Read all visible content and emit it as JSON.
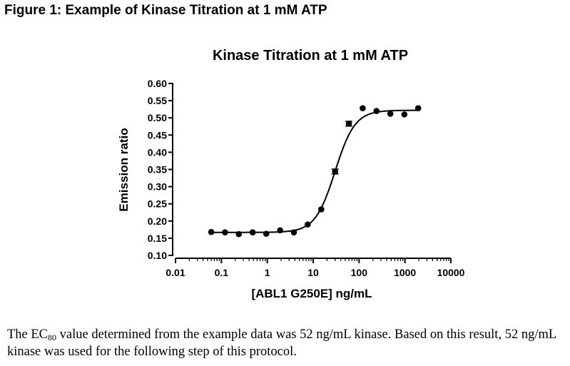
{
  "figure_caption": "Figure 1: Example of Kinase Titration at 1 mM ATP",
  "body_text": {
    "part1": "The EC",
    "subscript": "80",
    "part2": " value determined from the example data was 52 ng/mL kinase.  Based on this result, 52 ng/mL kinase was used for the following step of this protocol."
  },
  "chart_data": {
    "type": "scatter",
    "title": "Kinase Titration at 1 mM ATP",
    "xlabel": "[ABL1 G250E] ng/mL",
    "ylabel": "Emission ratio",
    "x_scale": "log",
    "xlim": [
      0.01,
      10000
    ],
    "ylim": [
      0.1,
      0.6
    ],
    "x_ticks": [
      {
        "value": 0.01,
        "label": "0.01"
      },
      {
        "value": 0.1,
        "label": "0.1"
      },
      {
        "value": 1,
        "label": "1"
      },
      {
        "value": 10,
        "label": "10"
      },
      {
        "value": 100,
        "label": "100"
      },
      {
        "value": 1000,
        "label": "1000"
      },
      {
        "value": 10000,
        "label": "10000"
      }
    ],
    "y_ticks": [
      {
        "value": 0.1,
        "label": "0.10"
      },
      {
        "value": 0.15,
        "label": "0.15"
      },
      {
        "value": 0.2,
        "label": "0.20"
      },
      {
        "value": 0.25,
        "label": "0.25"
      },
      {
        "value": 0.3,
        "label": "0.30"
      },
      {
        "value": 0.35,
        "label": "0.35"
      },
      {
        "value": 0.4,
        "label": "0.40"
      },
      {
        "value": 0.45,
        "label": "0.45"
      },
      {
        "value": 0.5,
        "label": "0.50"
      },
      {
        "value": 0.55,
        "label": "0.55"
      },
      {
        "value": 0.6,
        "label": "0.60"
      }
    ],
    "grid": false,
    "points": [
      {
        "x": 0.06,
        "y": 0.168
      },
      {
        "x": 0.12,
        "y": 0.167
      },
      {
        "x": 0.24,
        "y": 0.162
      },
      {
        "x": 0.48,
        "y": 0.167
      },
      {
        "x": 0.95,
        "y": 0.163
      },
      {
        "x": 1.9,
        "y": 0.173
      },
      {
        "x": 3.8,
        "y": 0.167
      },
      {
        "x": 7.6,
        "y": 0.19
      },
      {
        "x": 15,
        "y": 0.234
      },
      {
        "x": 30,
        "y": 0.344,
        "err": 0.007
      },
      {
        "x": 60,
        "y": 0.483,
        "err": 0.007
      },
      {
        "x": 120,
        "y": 0.528
      },
      {
        "x": 240,
        "y": 0.52
      },
      {
        "x": 480,
        "y": 0.512
      },
      {
        "x": 970,
        "y": 0.51
      },
      {
        "x": 1940,
        "y": 0.528
      }
    ],
    "fit_curve": {
      "model": "sigmoidal dose-response",
      "bottom": 0.167,
      "top": 0.522,
      "ec50": 30,
      "hill_slope": 2.0,
      "x_range": [
        0.06,
        2000
      ]
    }
  }
}
